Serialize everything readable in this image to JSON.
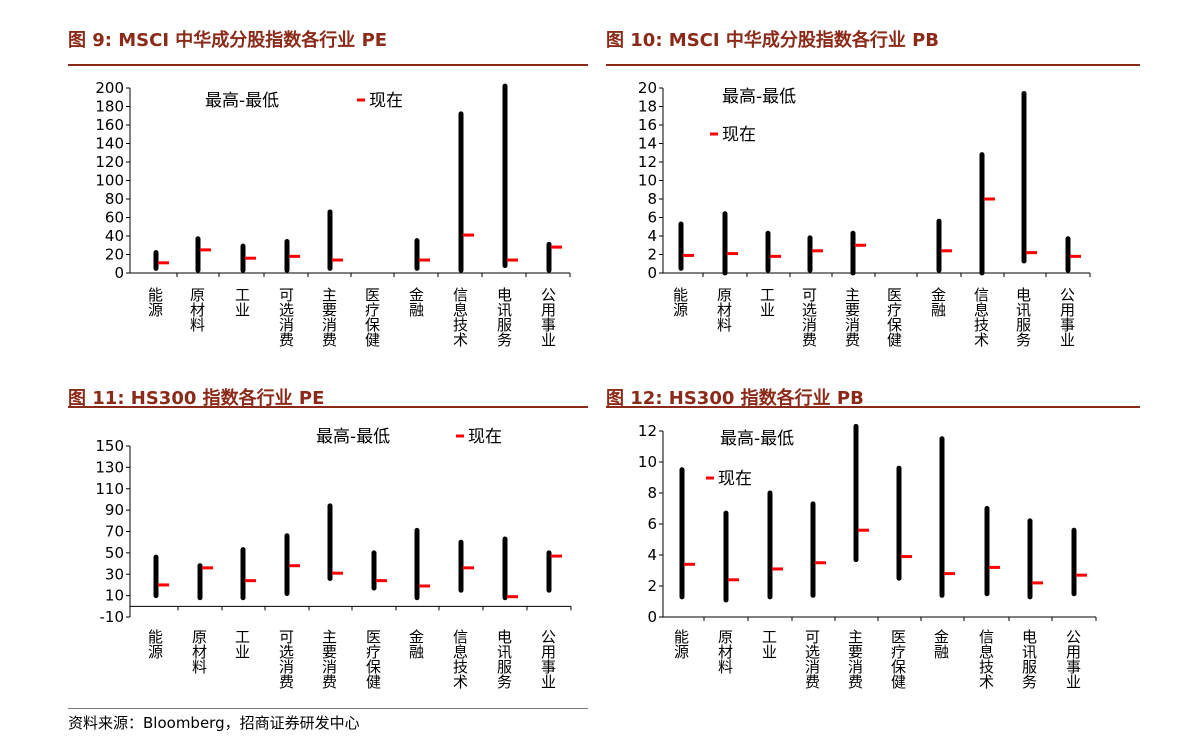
{
  "source_note": "资料来源：Bloomberg，招商证券研发中心",
  "categories": [
    "能源",
    "原材料",
    "工业",
    "可选消费",
    "主要消费",
    "医疗保健",
    "金融",
    "信息技术",
    "电讯服务",
    "公用事业"
  ],
  "legend": {
    "range_label": "最高-最低",
    "current_label": "现在"
  },
  "colors": {
    "title": "#8b2a18",
    "range_bar": "#000000",
    "current_marker": "#ff0000"
  },
  "chart_data": [
    {
      "type": "range",
      "title": "图 9:  MSCI 中华成分股指数各行业 PE",
      "ylim": [
        0,
        200
      ],
      "yticks": [
        0,
        20,
        40,
        60,
        80,
        100,
        120,
        140,
        160,
        180,
        200
      ],
      "series": [
        {
          "name": "最高-最低",
          "low": [
            5,
            3,
            3,
            3,
            5,
            null,
            5,
            3,
            8,
            3
          ],
          "high": [
            22,
            37,
            29,
            34,
            66,
            null,
            35,
            172,
            202,
            31
          ]
        },
        {
          "name": "现在",
          "values": [
            11,
            25,
            16,
            18,
            14,
            null,
            14,
            41,
            14,
            28
          ]
        }
      ]
    },
    {
      "type": "range",
      "title": "图 10:  MSCI 中华成分股指数各行业 PB",
      "ylim": [
        0,
        20
      ],
      "yticks": [
        0,
        2,
        4,
        6,
        8,
        10,
        12,
        14,
        16,
        18,
        20
      ],
      "series": [
        {
          "name": "最高-最低",
          "low": [
            0.5,
            0.0,
            0.3,
            0.3,
            0.0,
            null,
            0.3,
            0.0,
            1.3,
            0.3
          ],
          "high": [
            5.3,
            6.4,
            4.3,
            3.8,
            4.3,
            null,
            5.6,
            12.8,
            19.4,
            3.7
          ]
        },
        {
          "name": "现在",
          "values": [
            1.9,
            2.1,
            1.8,
            2.4,
            3.0,
            null,
            2.4,
            8.0,
            2.2,
            1.8
          ]
        }
      ]
    },
    {
      "type": "range",
      "title": "图 11:  HS300 指数各行业 PE",
      "ylim": [
        -10,
        150
      ],
      "yticks": [
        -10,
        10,
        30,
        50,
        70,
        90,
        110,
        130,
        150
      ],
      "series": [
        {
          "name": "最高-最低",
          "low": [
            10,
            8,
            8,
            12,
            26,
            17,
            8,
            15,
            8,
            15
          ],
          "high": [
            46,
            38,
            53,
            66,
            94,
            50,
            71,
            60,
            63,
            50
          ]
        },
        {
          "name": "现在",
          "values": [
            20,
            36,
            24,
            38,
            31,
            24,
            19,
            36,
            9,
            47
          ]
        }
      ]
    },
    {
      "type": "range",
      "title": "图 12:  HS300 指数各行业 PB",
      "ylim": [
        0,
        12
      ],
      "yticks": [
        0,
        2,
        4,
        6,
        8,
        10,
        12
      ],
      "series": [
        {
          "name": "最高-最低",
          "low": [
            1.3,
            1.1,
            1.3,
            1.4,
            3.7,
            2.5,
            1.4,
            1.5,
            1.3,
            1.5
          ],
          "high": [
            9.5,
            6.7,
            8.0,
            7.3,
            12.3,
            9.6,
            11.5,
            7.0,
            6.2,
            5.6
          ]
        },
        {
          "name": "现在",
          "values": [
            3.4,
            2.4,
            3.1,
            3.5,
            5.6,
            3.9,
            2.8,
            3.2,
            2.2,
            2.7
          ]
        }
      ]
    }
  ]
}
